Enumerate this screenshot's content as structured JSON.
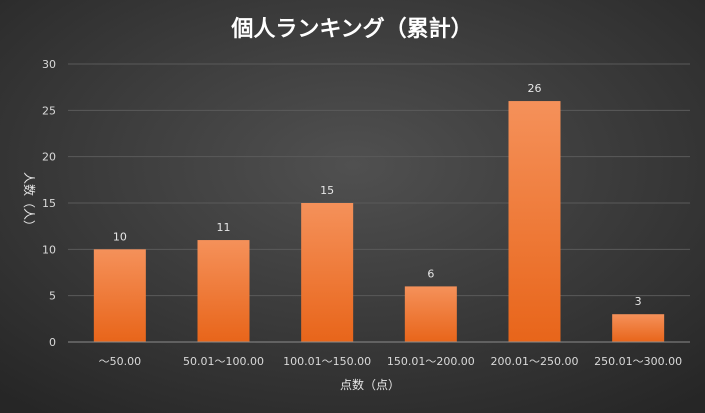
{
  "colors": {
    "background_center": "#505050",
    "background_edge": "#262626",
    "bar_top": "#f5915a",
    "bar_bottom": "#e8651a",
    "gridline": "#5a5a5a",
    "axis_line": "#8c8c8c",
    "text": "#d9d9d9"
  },
  "chart_data": {
    "type": "bar",
    "title": "個人ランキング（累計）",
    "xlabel": "点数（点）",
    "ylabel": "人数（人）",
    "categories": [
      "～50.00",
      "50.01～100.00",
      "100.01～150.00",
      "150.01～200.00",
      "200.01～250.00",
      "250.01～300.00"
    ],
    "values": [
      10,
      11,
      15,
      6,
      26,
      3
    ],
    "ylim": [
      0,
      30
    ],
    "yticks": [
      0,
      5,
      10,
      15,
      20,
      25,
      30
    ],
    "grid": true,
    "data_labels": true,
    "legend": "none"
  }
}
